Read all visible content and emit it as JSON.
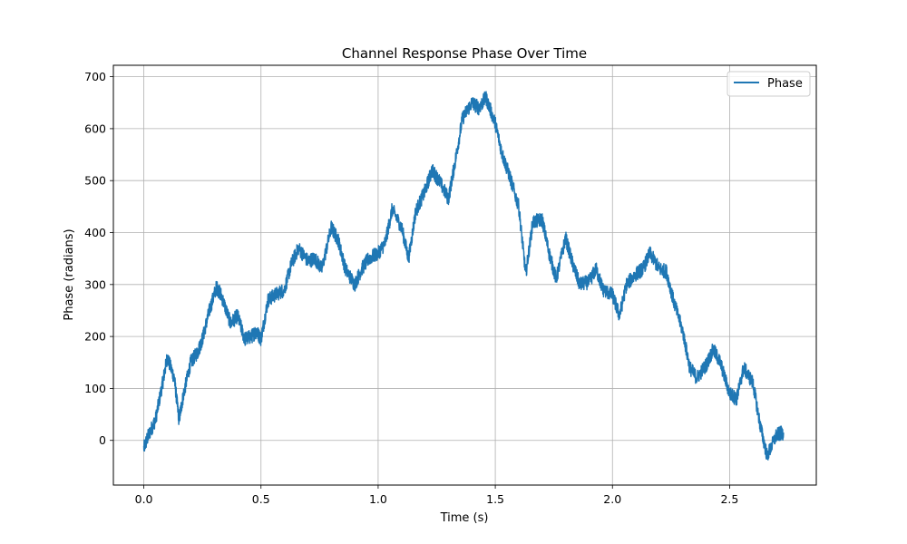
{
  "chart_data": {
    "type": "line",
    "title": "Channel Response Phase Over Time",
    "xlabel": "Time (s)",
    "ylabel": "Phase (radians)",
    "xlim": [
      -0.13,
      2.87
    ],
    "ylim": [
      -86,
      722
    ],
    "x_ticks": [
      0.0,
      0.5,
      1.0,
      1.5,
      2.0,
      2.5
    ],
    "x_tick_labels": [
      "0.0",
      "0.5",
      "1.0",
      "1.5",
      "2.0",
      "2.5"
    ],
    "y_ticks": [
      0,
      100,
      200,
      300,
      400,
      500,
      600,
      700
    ],
    "y_tick_labels": [
      "0",
      "100",
      "200",
      "300",
      "400",
      "500",
      "600",
      "700"
    ],
    "grid": true,
    "legend_location": "upper right",
    "colors": {
      "series": "#1f77b4",
      "grid": "#b0b0b0",
      "axes": "#000000"
    },
    "series": [
      {
        "name": "Phase",
        "x": [
          0.0,
          0.02,
          0.05,
          0.08,
          0.1,
          0.13,
          0.15,
          0.17,
          0.2,
          0.23,
          0.25,
          0.28,
          0.31,
          0.33,
          0.37,
          0.4,
          0.43,
          0.46,
          0.48,
          0.5,
          0.53,
          0.56,
          0.6,
          0.63,
          0.66,
          0.7,
          0.73,
          0.76,
          0.8,
          0.83,
          0.86,
          0.9,
          0.93,
          0.96,
          1.0,
          1.03,
          1.06,
          1.1,
          1.13,
          1.16,
          1.2,
          1.23,
          1.26,
          1.3,
          1.33,
          1.36,
          1.4,
          1.43,
          1.46,
          1.5,
          1.53,
          1.56,
          1.6,
          1.63,
          1.66,
          1.7,
          1.73,
          1.76,
          1.8,
          1.83,
          1.86,
          1.9,
          1.93,
          1.96,
          2.0,
          2.03,
          2.06,
          2.1,
          2.13,
          2.16,
          2.2,
          2.23,
          2.26,
          2.3,
          2.33,
          2.36,
          2.4,
          2.43,
          2.46,
          2.5,
          2.53,
          2.56,
          2.6,
          2.63,
          2.66,
          2.7,
          2.73
        ],
        "y": [
          -15,
          10,
          40,
          110,
          160,
          120,
          40,
          90,
          150,
          170,
          195,
          250,
          295,
          280,
          225,
          240,
          195,
          200,
          210,
          195,
          270,
          280,
          290,
          340,
          370,
          345,
          350,
          330,
          410,
          385,
          330,
          300,
          330,
          350,
          360,
          380,
          445,
          410,
          350,
          440,
          480,
          520,
          500,
          465,
          540,
          620,
          650,
          640,
          660,
          610,
          550,
          510,
          450,
          320,
          420,
          425,
          360,
          310,
          390,
          340,
          300,
          305,
          330,
          290,
          280,
          240,
          300,
          320,
          330,
          360,
          330,
          325,
          270,
          210,
          140,
          120,
          145,
          175,
          150,
          90,
          80,
          140,
          110,
          30,
          -30,
          10,
          15
        ]
      }
    ]
  }
}
